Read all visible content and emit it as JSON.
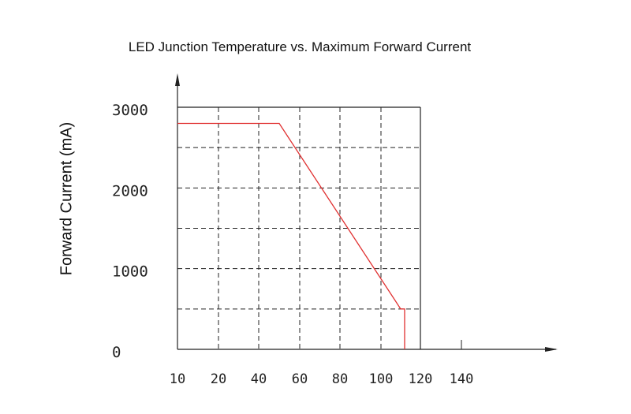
{
  "chart_data": {
    "type": "line",
    "title": "LED Junction Temperature vs. Maximum Forward Current",
    "xlabel": "",
    "ylabel": "Forward Current (mA)",
    "x_ticks": [
      10,
      20,
      40,
      60,
      80,
      100,
      120,
      140
    ],
    "y_ticks": [
      0,
      1000,
      2000,
      3000
    ],
    "xlim": [
      10,
      180
    ],
    "ylim": [
      0,
      3000
    ],
    "grid": true,
    "series": [
      {
        "color": "#e03030",
        "points": [
          [
            10,
            2800
          ],
          [
            50,
            2800
          ],
          [
            110,
            500
          ],
          [
            112,
            500
          ],
          [
            112,
            0
          ]
        ]
      }
    ]
  }
}
